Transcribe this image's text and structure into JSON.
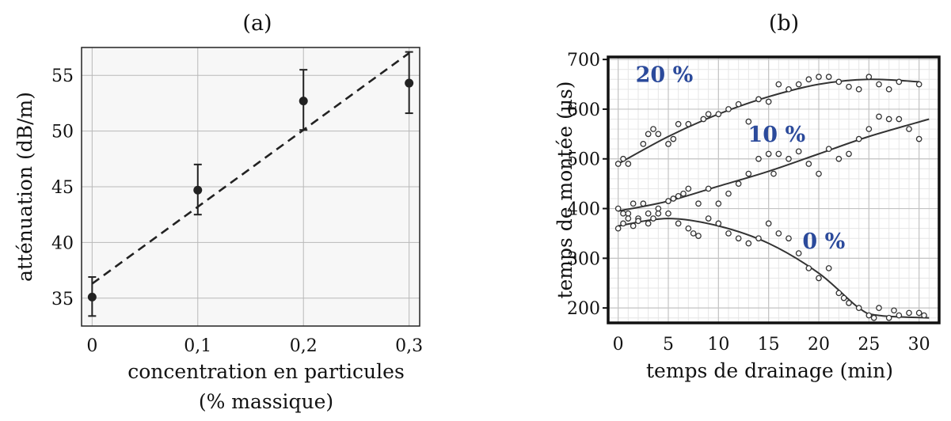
{
  "chart_data": [
    {
      "type": "scatter",
      "panel_label": "(a)",
      "xlabel_line1": "concentration en particules",
      "xlabel_line2": "(% massique)",
      "ylabel": "atténuation (dB/m)",
      "xlim": [
        -0.01,
        0.31
      ],
      "ylim": [
        32.5,
        57.5
      ],
      "x_ticks": [
        0,
        0.1,
        0.2,
        0.3
      ],
      "x_tick_labels": [
        "0",
        "0,1",
        "0,2",
        "0,3"
      ],
      "y_ticks": [
        35,
        40,
        45,
        50,
        55
      ],
      "y_tick_labels": [
        "35",
        "40",
        "45",
        "50",
        "55"
      ],
      "grid": true,
      "series": [
        {
          "points": [
            {
              "x": 0,
              "y": 35.1,
              "err_low": 33.4,
              "err_high": 36.9
            },
            {
              "x": 0.1,
              "y": 44.7,
              "err_low": 42.5,
              "err_high": 47.0
            },
            {
              "x": 0.2,
              "y": 52.7,
              "err_low": 50.1,
              "err_high": 55.5
            },
            {
              "x": 0.3,
              "y": 54.3,
              "err_low": 51.6,
              "err_high": 57.1
            }
          ]
        }
      ],
      "fit_line": {
        "style": "dashed",
        "x": [
          0,
          0.3
        ],
        "y": [
          36.3,
          57.0
        ]
      }
    },
    {
      "type": "scatter",
      "panel_label": "(b)",
      "xlabel": "temps de drainage (min)",
      "ylabel": "temps de montée (µs)",
      "xlim": [
        -1,
        32
      ],
      "ylim": [
        170,
        705
      ],
      "x_ticks": [
        0,
        5,
        10,
        15,
        20,
        25,
        30
      ],
      "x_tick_labels": [
        "0",
        "5",
        "10",
        "15",
        "20",
        "25",
        "30"
      ],
      "y_ticks": [
        200,
        300,
        400,
        500,
        600,
        700
      ],
      "y_tick_labels": [
        "200",
        "300",
        "400",
        "500",
        "600",
        "700"
      ],
      "grid": true,
      "annotation_color": "#2b4a9b",
      "series": [
        {
          "name": "20 %",
          "points": [
            [
              0,
              490
            ],
            [
              0.5,
              500
            ],
            [
              1,
              490
            ],
            [
              2.5,
              530
            ],
            [
              3,
              550
            ],
            [
              3.5,
              560
            ],
            [
              4,
              550
            ],
            [
              5,
              530
            ],
            [
              5.5,
              540
            ],
            [
              6,
              570
            ],
            [
              7,
              570
            ],
            [
              8.5,
              580
            ],
            [
              9,
              590
            ],
            [
              10,
              590
            ],
            [
              11,
              600
            ],
            [
              12,
              610
            ],
            [
              13,
              575
            ],
            [
              14,
              620
            ],
            [
              15,
              615
            ],
            [
              16,
              650
            ],
            [
              17,
              640
            ],
            [
              18,
              650
            ],
            [
              19,
              660
            ],
            [
              20,
              665
            ],
            [
              21,
              665
            ],
            [
              22,
              655
            ],
            [
              23,
              645
            ],
            [
              24,
              640
            ],
            [
              25,
              665
            ],
            [
              26,
              650
            ],
            [
              27,
              640
            ],
            [
              28,
              655
            ],
            [
              30,
              650
            ]
          ],
          "fit": [
            [
              0,
              490
            ],
            [
              5,
              545
            ],
            [
              10,
              590
            ],
            [
              15,
              625
            ],
            [
              20,
              650
            ],
            [
              25,
              660
            ],
            [
              30,
              655
            ]
          ]
        },
        {
          "name": "10 %",
          "points": [
            [
              0,
              400
            ],
            [
              0.5,
              390
            ],
            [
              1,
              390
            ],
            [
              1.5,
              410
            ],
            [
              2,
              380
            ],
            [
              2.5,
              410
            ],
            [
              3,
              390
            ],
            [
              4,
              400
            ],
            [
              5,
              415
            ],
            [
              5.5,
              420
            ],
            [
              6,
              425
            ],
            [
              6.5,
              430
            ],
            [
              7,
              440
            ],
            [
              8,
              410
            ],
            [
              9,
              440
            ],
            [
              10,
              410
            ],
            [
              11,
              430
            ],
            [
              12,
              450
            ],
            [
              13,
              470
            ],
            [
              14,
              500
            ],
            [
              15,
              510
            ],
            [
              15.5,
              470
            ],
            [
              16,
              510
            ],
            [
              17,
              500
            ],
            [
              18,
              515
            ],
            [
              19,
              490
            ],
            [
              20,
              470
            ],
            [
              21,
              520
            ],
            [
              22,
              500
            ],
            [
              23,
              510
            ],
            [
              24,
              540
            ],
            [
              25,
              560
            ],
            [
              26,
              585
            ],
            [
              27,
              580
            ],
            [
              28,
              580
            ],
            [
              29,
              560
            ],
            [
              30,
              540
            ]
          ],
          "fit": [
            [
              0,
              395
            ],
            [
              5,
              415
            ],
            [
              10,
              445
            ],
            [
              15,
              475
            ],
            [
              20,
              510
            ],
            [
              25,
              545
            ],
            [
              31,
              580
            ]
          ]
        },
        {
          "name": "0 %",
          "points": [
            [
              0,
              360
            ],
            [
              0.5,
              370
            ],
            [
              1,
              380
            ],
            [
              1.5,
              365
            ],
            [
              2,
              375
            ],
            [
              3,
              370
            ],
            [
              3.5,
              380
            ],
            [
              4,
              390
            ],
            [
              5,
              390
            ],
            [
              6,
              370
            ],
            [
              7,
              360
            ],
            [
              7.5,
              350
            ],
            [
              8,
              345
            ],
            [
              9,
              380
            ],
            [
              10,
              370
            ],
            [
              11,
              350
            ],
            [
              12,
              340
            ],
            [
              13,
              330
            ],
            [
              14,
              340
            ],
            [
              15,
              370
            ],
            [
              16,
              350
            ],
            [
              17,
              340
            ],
            [
              18,
              310
            ],
            [
              19,
              280
            ],
            [
              20,
              260
            ],
            [
              21,
              280
            ],
            [
              22,
              230
            ],
            [
              22.5,
              220
            ],
            [
              23,
              210
            ],
            [
              24,
              200
            ],
            [
              25,
              185
            ],
            [
              25.5,
              180
            ],
            [
              26,
              200
            ],
            [
              27,
              180
            ],
            [
              27.5,
              195
            ],
            [
              28,
              185
            ],
            [
              29,
              190
            ],
            [
              30,
              190
            ],
            [
              30.5,
              185
            ]
          ],
          "fit": [
            [
              0,
              365
            ],
            [
              5,
              380
            ],
            [
              10,
              365
            ],
            [
              15,
              330
            ],
            [
              20,
              270
            ],
            [
              24,
              200
            ],
            [
              26,
              185
            ],
            [
              31,
              180
            ]
          ]
        }
      ]
    }
  ]
}
